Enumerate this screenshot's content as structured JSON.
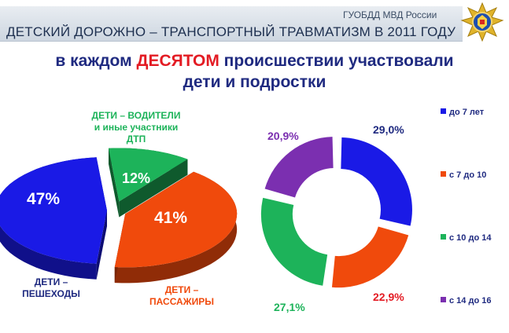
{
  "header": {
    "org": "ГУОБДД МВД России",
    "title": "ДЕТСКИЙ ДОРОЖНО – ТРАНСПОРТНЫЙ ТРАВМАТИЗМ В 2011 ГОДУ",
    "emblem_icon": "traffic-police-emblem-icon"
  },
  "headline": {
    "before": "в каждом ",
    "accent": "ДЕСЯТОМ",
    "after": " происшествии участвовали",
    "line2": "дети и подростки"
  },
  "colors": {
    "blue": "#1a1ae6",
    "red": "#f04a0c",
    "green": "#1db35a",
    "purple": "#7b2fb0",
    "navy": "#1f2a80"
  },
  "chart_data": [
    {
      "type": "pie",
      "categories": [
        "ДЕТИ – ПЕШЕХОДЫ",
        "ДЕТИ – ВОДИТЕЛИ и иные участники ДТП",
        "ДЕТИ – ПАССАЖИРЫ"
      ],
      "values": [
        47,
        12,
        41
      ],
      "labels": [
        "47%",
        "12%",
        "41%"
      ],
      "category_lines": [
        [
          "ДЕТИ –",
          "ПЕШЕХОДЫ"
        ],
        [
          "ДЕТИ – ВОДИТЕЛИ",
          "и иные участники",
          "ДТП"
        ],
        [
          "ДЕТИ –",
          "ПАССАЖИРЫ"
        ]
      ],
      "colors": [
        "#1a1ae6",
        "#1db35a",
        "#f04a0c"
      ],
      "style": "3d-exploded"
    },
    {
      "type": "pie",
      "subtype": "donut",
      "categories": [
        "до 7 лет",
        "с 7 до 10",
        "с 10 до 14",
        "с 14 до 16"
      ],
      "values": [
        29.0,
        22.9,
        27.1,
        20.9
      ],
      "labels": [
        "29,0%",
        "22,9%",
        "27,1%",
        "20,9%"
      ],
      "colors": [
        "#1a1ae6",
        "#f04a0c",
        "#1db35a",
        "#7b2fb0"
      ],
      "legend": "right"
    }
  ]
}
